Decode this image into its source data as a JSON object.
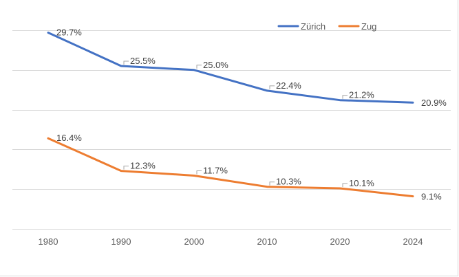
{
  "chart_data": {
    "type": "line",
    "title": "",
    "xlabel": "",
    "ylabel": "",
    "categories": [
      "1980",
      "1990",
      "2000",
      "2010",
      "2020",
      "2024"
    ],
    "ylim": [
      5,
      30
    ],
    "grid": true,
    "legend_position": "top-right",
    "series": [
      {
        "name": "Zürich",
        "color": "#4472C4",
        "values": [
          29.7,
          25.5,
          25.0,
          22.4,
          21.2,
          20.9
        ],
        "labels": [
          "29.7%",
          "25.5%",
          "25.0%",
          "22.4%",
          "21.2%",
          "20.9%"
        ]
      },
      {
        "name": "Zug",
        "color": "#ED7D31",
        "values": [
          16.4,
          12.3,
          11.7,
          10.3,
          10.1,
          9.1
        ],
        "labels": [
          "16.4%",
          "12.3%",
          "11.7%",
          "10.3%",
          "10.1%",
          "9.1%"
        ]
      }
    ]
  }
}
